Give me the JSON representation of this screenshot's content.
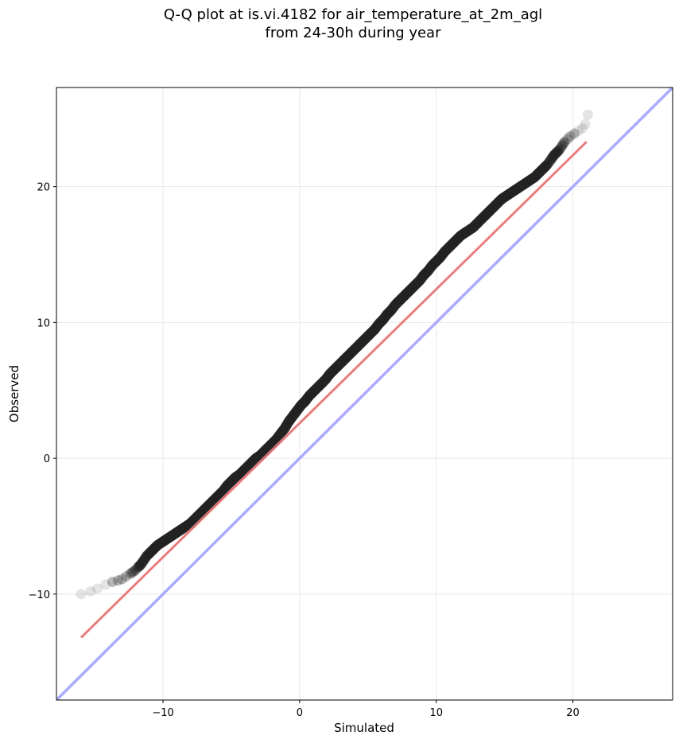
{
  "chart_data": {
    "type": "scatter",
    "title_lines": [
      "Q-Q plot at is.vi.4182 for air_temperature_at_2m_agl",
      "from 24-30h during year"
    ],
    "xlabel": "Simulated",
    "ylabel": "Observed",
    "xlim": [
      -17.8,
      27.3
    ],
    "ylim": [
      -17.8,
      27.3
    ],
    "xticks": [
      -10,
      0,
      10,
      20
    ],
    "yticks": [
      -10,
      0,
      10,
      20
    ],
    "grid": true,
    "legend": "none",
    "reference_line": {
      "name": "1:1",
      "slope": 1,
      "intercept": 0,
      "color": "#aaaaff"
    },
    "fit_line": {
      "x": [
        -16.0,
        21.0
      ],
      "y": [
        -13.2,
        23.3
      ],
      "color": "#ff9999"
    },
    "points_color": "#222222",
    "quantiles": {
      "x": [
        -16.0,
        -15.3,
        -14.8,
        -14.2,
        -13.7,
        -13.3,
        -13.0,
        -12.7,
        -12.4,
        -12.1,
        -11.8,
        -11.6,
        -11.4,
        -11.2,
        -11.0,
        -10.7,
        -10.4,
        -10.1,
        -9.8,
        -9.5,
        -9.2,
        -8.9,
        -8.6,
        -8.3,
        -8.0,
        -7.7,
        -7.4,
        -7.1,
        -6.8,
        -6.5,
        -6.2,
        -5.9,
        -5.6,
        -5.3,
        -5.0,
        -4.7,
        -4.4,
        -4.1,
        -3.8,
        -3.5,
        -3.2,
        -2.9,
        -2.6,
        -2.3,
        -2.0,
        -1.7,
        -1.4,
        -1.1,
        -0.8,
        -0.5,
        -0.2,
        0.1,
        0.4,
        0.7,
        1.0,
        1.3,
        1.6,
        1.9,
        2.2,
        2.5,
        2.8,
        3.1,
        3.4,
        3.7,
        4.0,
        4.3,
        4.6,
        4.9,
        5.2,
        5.5,
        5.8,
        6.1,
        6.4,
        6.7,
        7.0,
        7.3,
        7.6,
        7.9,
        8.2,
        8.5,
        8.8,
        9.1,
        9.4,
        9.7,
        10.0,
        10.3,
        10.6,
        10.9,
        11.2,
        11.5,
        11.8,
        12.1,
        12.4,
        12.7,
        13.0,
        13.3,
        13.6,
        13.9,
        14.2,
        14.5,
        14.8,
        15.1,
        15.4,
        15.7,
        16.0,
        16.3,
        16.6,
        16.9,
        17.2,
        17.5,
        17.8,
        18.1,
        18.4,
        18.6,
        18.8,
        19.0,
        19.2,
        19.4,
        19.6,
        19.8,
        20.1,
        20.4,
        20.7,
        20.9,
        21.1
      ],
      "y": [
        -10.0,
        -9.8,
        -9.6,
        -9.3,
        -9.1,
        -9.0,
        -8.9,
        -8.7,
        -8.5,
        -8.3,
        -8.0,
        -7.8,
        -7.5,
        -7.2,
        -7.0,
        -6.7,
        -6.4,
        -6.2,
        -6.0,
        -5.8,
        -5.6,
        -5.4,
        -5.2,
        -5.0,
        -4.8,
        -4.5,
        -4.2,
        -3.9,
        -3.6,
        -3.3,
        -3.0,
        -2.7,
        -2.4,
        -2.0,
        -1.7,
        -1.4,
        -1.2,
        -0.9,
        -0.6,
        -0.3,
        0.0,
        0.2,
        0.5,
        0.8,
        1.1,
        1.4,
        1.8,
        2.2,
        2.7,
        3.1,
        3.5,
        3.9,
        4.2,
        4.6,
        4.9,
        5.2,
        5.5,
        5.8,
        6.2,
        6.5,
        6.8,
        7.1,
        7.4,
        7.7,
        8.0,
        8.3,
        8.6,
        8.9,
        9.2,
        9.5,
        9.9,
        10.2,
        10.6,
        10.9,
        11.3,
        11.6,
        11.9,
        12.2,
        12.5,
        12.8,
        13.1,
        13.5,
        13.8,
        14.2,
        14.5,
        14.8,
        15.2,
        15.5,
        15.8,
        16.1,
        16.4,
        16.6,
        16.8,
        17.0,
        17.3,
        17.6,
        17.9,
        18.2,
        18.5,
        18.8,
        19.1,
        19.3,
        19.5,
        19.7,
        19.9,
        20.1,
        20.3,
        20.5,
        20.7,
        21.0,
        21.3,
        21.6,
        22.0,
        22.3,
        22.5,
        22.7,
        23.0,
        23.3,
        23.5,
        23.7,
        23.9,
        24.1,
        24.3,
        24.6,
        25.3
      ]
    }
  }
}
